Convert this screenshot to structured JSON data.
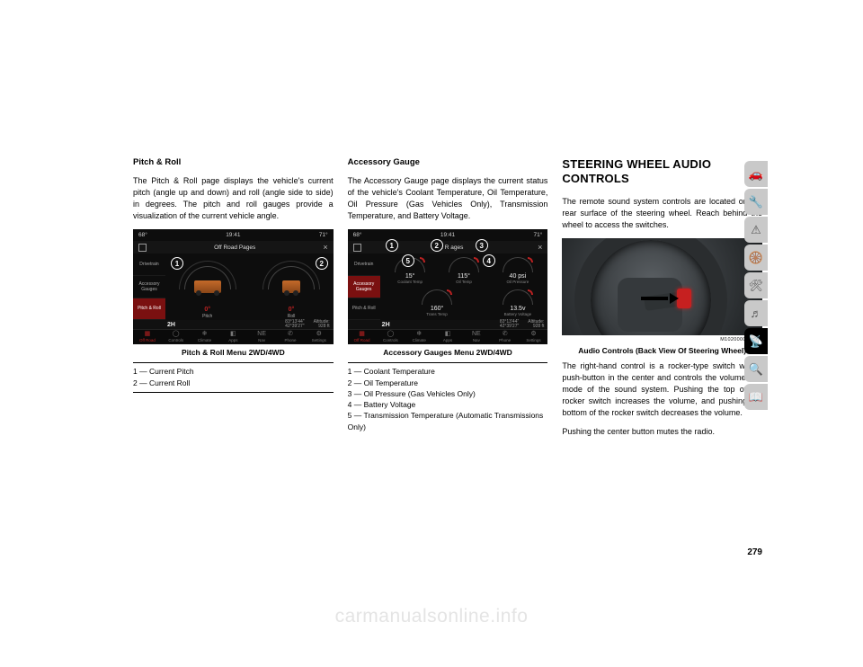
{
  "page_number": "279",
  "watermark": "carmanualsonline.info",
  "col1": {
    "heading": "Pitch & Roll",
    "para": "The Pitch & Roll page displays the vehicle's current pitch (angle up and down) and roll (angle side to side) in degrees. The pitch and roll gauges provide a visualization of the current vehicle angle.",
    "fig_caption": "Pitch & Roll Menu 2WD/4WD",
    "legend": [
      "1 — Current Pitch",
      "2 — Current Roll"
    ],
    "screen": {
      "temp_left": "68°",
      "clock": "19:41",
      "temp_right": "71°",
      "title": "Off Road Pages",
      "sidenav": [
        "Drivetrain",
        "Accessory Gauges",
        "Pitch & Roll"
      ],
      "sidenav_active_index": 2,
      "gauges": [
        {
          "label": "Pitch",
          "value": "0°",
          "callout": "1"
        },
        {
          "label": "Roll",
          "value": "0°",
          "callout": "2"
        }
      ],
      "mode": "2H",
      "coords_top": "83°13'44\"",
      "coords_bot": "42°39'27\"",
      "altitude_label": "Altitude:",
      "altitude": "928 ft",
      "bottombar": [
        "Off Road",
        "Controls",
        "Climate",
        "Apps",
        "Nav",
        "Phone",
        "Settings"
      ],
      "bottombar_glyphs": [
        "▦",
        "◯",
        "❄",
        "◧",
        "NE",
        "✆",
        "⚙"
      ],
      "bottombar_active_index": 0
    }
  },
  "col2": {
    "heading": "Accessory Gauge",
    "para": "The Accessory Gauge page displays the current status of the vehicle's Coolant Temperature, Oil Temperature, Oil Pressure (Gas Vehicles Only), Transmission Tempera­ture, and Battery Voltage.",
    "fig_caption": "Accessory Gauges Menu 2WD/4WD",
    "legend": [
      "1 — Coolant Temperature",
      "2 — Oil Temperature",
      "3 — Oil Pressure (Gas Vehicles Only)",
      "4 — Battery Voltage",
      "5 — Transmission Temperature (Automatic Transmissions Only)"
    ],
    "screen": {
      "temp_left": "68°",
      "clock": "19:41",
      "temp_right": "71°",
      "title_prefix": "Off R",
      "title_suffix": "ages",
      "sidenav": [
        "Drivetrain",
        "Accessory Gauges",
        "Pitch & Roll"
      ],
      "sidenav_active_index": 1,
      "gauges_top": [
        {
          "label": "Coolant Temp",
          "value": "15°",
          "callout": "1"
        },
        {
          "label": "Oil Temp",
          "value": "115°",
          "callout": "2"
        },
        {
          "label": "Oil Pressure",
          "value": "40 psi",
          "callout": "3"
        }
      ],
      "gauges_bot": [
        {
          "label": "Trans Temp",
          "value": "160°",
          "callout": "5"
        },
        {
          "label": "Battery Voltage",
          "value": "13.5v",
          "callout": "4"
        }
      ],
      "mode": "2H",
      "coords_top": "83°13'44\"",
      "coords_bot": "42°39'27\"",
      "altitude_label": "Altitude:",
      "altitude": "928 ft",
      "bottombar": [
        "Off Road",
        "Controls",
        "Climate",
        "Apps",
        "Nav",
        "Phone",
        "Settings"
      ],
      "bottombar_glyphs": [
        "▦",
        "◯",
        "❄",
        "◧",
        "NE",
        "✆",
        "⚙"
      ],
      "bottombar_active_index": 0
    }
  },
  "col3": {
    "section_heading": "STEERING WHEEL AUDIO CONTROLS",
    "para1": "The remote sound system controls are located on the rear surface of the steering wheel. Reach behind the wheel to access the switches.",
    "photo_code": "M1020000008US",
    "fig_caption": "Audio Controls (Back View Of Steering Wheel)",
    "para2": "The right-hand control is a rocker-type switch with a push-button in the center and controls the volume and mode of the sound system. Pushing the top of the rocker switch increases the volume, and pushing the bottom of the rocker switch decreases the volume.",
    "para3": "Pushing the center button mutes the radio."
  },
  "tabs": {
    "glyphs": [
      "🚗",
      "🔧",
      "⚠",
      "🛞",
      "🛠",
      "♬",
      "📡",
      "🔍",
      "📖"
    ],
    "active_index": 6
  },
  "colors": {
    "accent_red": "#b22222",
    "screen_bg": "#0d0d0d",
    "tab_inactive": "#c9c9c9",
    "tab_active": "#000000",
    "watermark": "#e4e4e4"
  }
}
